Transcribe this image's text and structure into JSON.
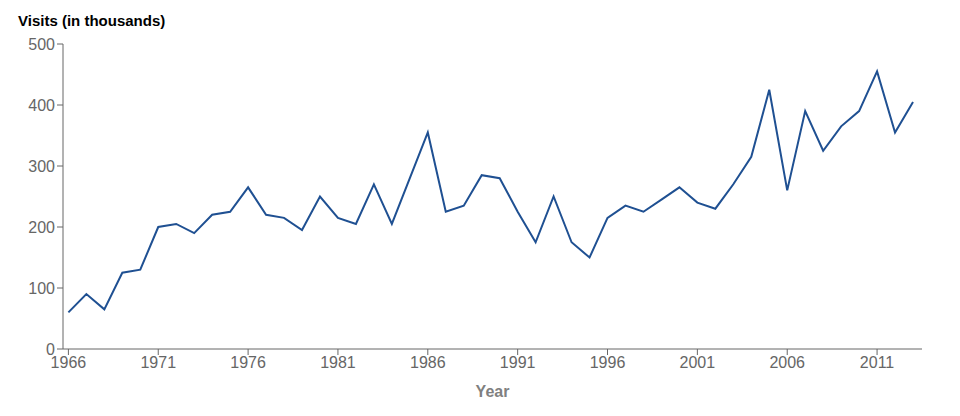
{
  "chart_data": {
    "type": "line",
    "y_label": "Visits (in thousands)",
    "x_label": "Year",
    "x": [
      1966,
      1967,
      1968,
      1969,
      1970,
      1971,
      1972,
      1973,
      1974,
      1975,
      1976,
      1977,
      1978,
      1979,
      1980,
      1981,
      1982,
      1983,
      1984,
      1985,
      1986,
      1987,
      1988,
      1989,
      1990,
      1991,
      1992,
      1993,
      1994,
      1995,
      1996,
      1997,
      1998,
      1999,
      2000,
      2001,
      2002,
      2003,
      2004,
      2005,
      2006,
      2007,
      2008,
      2009,
      2010,
      2011,
      2012,
      2013
    ],
    "values": [
      60,
      90,
      65,
      125,
      130,
      200,
      205,
      190,
      220,
      225,
      265,
      220,
      215,
      195,
      250,
      215,
      205,
      270,
      205,
      280,
      355,
      225,
      235,
      285,
      280,
      225,
      175,
      250,
      175,
      150,
      215,
      235,
      225,
      245,
      265,
      240,
      230,
      270,
      315,
      425,
      260,
      390,
      325,
      365,
      390,
      455,
      355,
      405
    ],
    "color": "#1f5092",
    "xlim": [
      1965.7,
      2013.5
    ],
    "ylim": [
      0,
      500
    ],
    "xticks": [
      1966,
      1971,
      1976,
      1981,
      1986,
      1991,
      1996,
      2001,
      2006,
      2011
    ],
    "yticks": [
      0,
      100,
      200,
      300,
      400,
      500
    ],
    "grid": false
  }
}
